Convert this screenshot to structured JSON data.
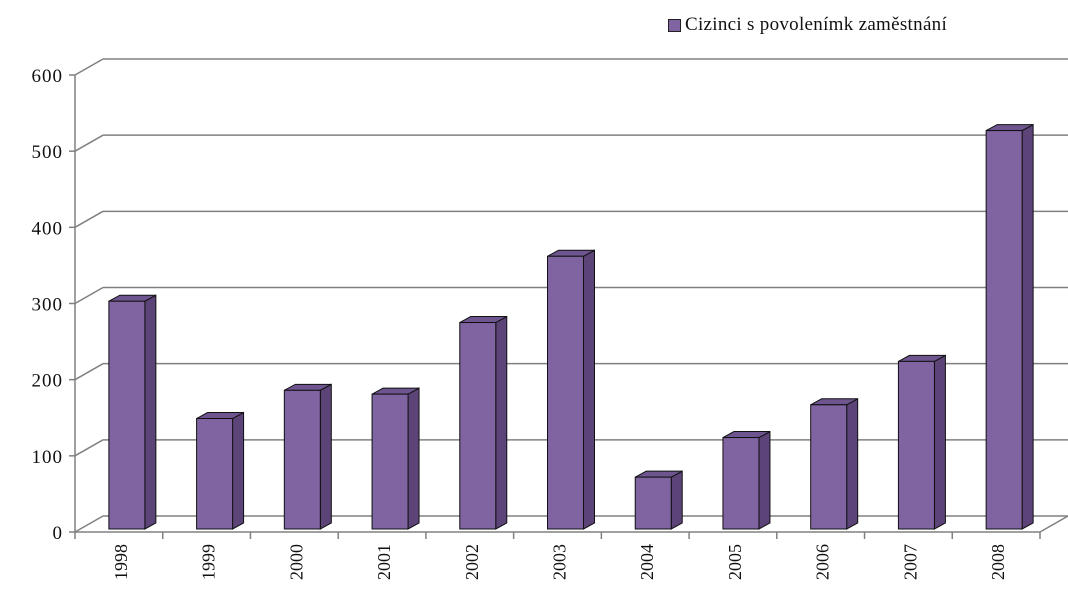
{
  "legend": {
    "label": "Cizinci s povolenímk zaměstnání"
  },
  "colors": {
    "bar_front": "#8064a2",
    "bar_side": "#5c4478",
    "bar_top": "#6e5590",
    "grid": "#808080",
    "outline": "#111111"
  },
  "chart_data": {
    "type": "bar",
    "title": "",
    "xlabel": "",
    "ylabel": "",
    "categories": [
      "1998",
      "1999",
      "2000",
      "2001",
      "2002",
      "2003",
      "2004",
      "2005",
      "2006",
      "2007",
      "2008"
    ],
    "series": [
      {
        "name": "Cizinci s povolenímk zaměstnání",
        "values": [
          303,
          149,
          186,
          181,
          275,
          362,
          72,
          124,
          167,
          224,
          527
        ]
      }
    ],
    "ylim": [
      0,
      600
    ],
    "yticks": [
      "0",
      "100",
      "200",
      "300",
      "400",
      "500",
      "600"
    ],
    "grid": true,
    "legend_position": "top-right"
  }
}
